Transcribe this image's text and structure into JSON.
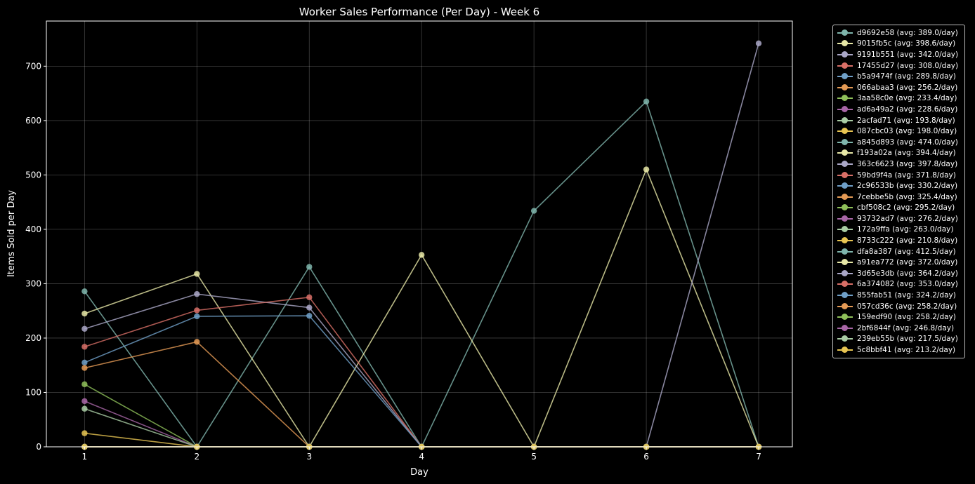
{
  "chart_data": {
    "type": "line",
    "title": "Worker Sales Performance (Per Day) - Week 6",
    "xlabel": "Day",
    "ylabel": "Items Sold per Day",
    "x": [
      1,
      2,
      3,
      4,
      5,
      6,
      7
    ],
    "xlim": [
      0.66,
      7.3
    ],
    "ylim": [
      0,
      783
    ],
    "yticks": [
      0,
      100,
      200,
      300,
      400,
      500,
      600,
      700
    ],
    "grid": true,
    "legend_position": "outside-right",
    "series": [
      {
        "name": "d9692e58 (avg: 389.0/day)",
        "color": "#7fb5ac",
        "values": [
          286,
          0,
          331,
          0,
          434,
          635,
          0
        ]
      },
      {
        "name": "9015fb5c (avg: 398.6/day)",
        "color": "#e7e7a6",
        "values": [
          245,
          318,
          0,
          353,
          0,
          510,
          0
        ]
      },
      {
        "name": "9191b551 (avg: 342.0/day)",
        "color": "#aaa7c7",
        "values": [
          217,
          281,
          256,
          0,
          0,
          0,
          742
        ]
      },
      {
        "name": "17455d27 (avg: 308.0/day)",
        "color": "#d86f67",
        "values": [
          184,
          251,
          275,
          0,
          0,
          0,
          0
        ]
      },
      {
        "name": "b5a9474f (avg: 289.8/day)",
        "color": "#6f9fc7",
        "values": [
          155,
          240,
          241,
          0,
          0,
          0,
          0
        ]
      },
      {
        "name": "066abaa3 (avg: 256.2/day)",
        "color": "#e49a55",
        "values": [
          145,
          193,
          0,
          0,
          0,
          0,
          0
        ]
      },
      {
        "name": "3aa58c0e (avg: 233.4/day)",
        "color": "#8fc05a",
        "values": [
          115,
          0,
          0,
          0,
          0,
          0,
          0
        ]
      },
      {
        "name": "ad6a49a2 (avg: 228.6/day)",
        "color": "#a866a6",
        "values": [
          84,
          0,
          0,
          0,
          0,
          0,
          0
        ]
      },
      {
        "name": "2acfad71 (avg: 193.8/day)",
        "color": "#a9cca4",
        "values": [
          70,
          0,
          0,
          0,
          0,
          0,
          0
        ]
      },
      {
        "name": "087cbc03 (avg: 198.0/day)",
        "color": "#e8c552",
        "values": [
          25,
          0,
          0,
          0,
          0,
          0,
          0
        ]
      },
      {
        "name": "a845d893 (avg: 474.0/day)",
        "color": "#7fb5ac",
        "values": [
          0,
          0,
          0,
          0,
          0,
          0,
          0
        ]
      },
      {
        "name": "f193a02a (avg: 394.4/day)",
        "color": "#e7e7a6",
        "values": [
          0,
          0,
          0,
          0,
          0,
          0,
          0
        ]
      },
      {
        "name": "363c6623 (avg: 397.8/day)",
        "color": "#aaa7c7",
        "values": [
          0,
          0,
          0,
          0,
          0,
          0,
          0
        ]
      },
      {
        "name": "59bd9f4a (avg: 371.8/day)",
        "color": "#d86f67",
        "values": [
          0,
          0,
          0,
          0,
          0,
          0,
          0
        ]
      },
      {
        "name": "2c96533b (avg: 330.2/day)",
        "color": "#6f9fc7",
        "values": [
          0,
          0,
          0,
          0,
          0,
          0,
          0
        ]
      },
      {
        "name": "7cebbe5b (avg: 325.4/day)",
        "color": "#e49a55",
        "values": [
          0,
          0,
          0,
          0,
          0,
          0,
          0
        ]
      },
      {
        "name": "cbf508c2 (avg: 295.2/day)",
        "color": "#8fc05a",
        "values": [
          0,
          0,
          0,
          0,
          0,
          0,
          0
        ]
      },
      {
        "name": "93732ad7 (avg: 276.2/day)",
        "color": "#a866a6",
        "values": [
          0,
          0,
          0,
          0,
          0,
          0,
          0
        ]
      },
      {
        "name": "172a9ffa (avg: 263.0/day)",
        "color": "#a9cca4",
        "values": [
          0,
          0,
          0,
          0,
          0,
          0,
          0
        ]
      },
      {
        "name": "8733c222 (avg: 210.8/day)",
        "color": "#e8c552",
        "values": [
          0,
          0,
          0,
          0,
          0,
          0,
          0
        ]
      },
      {
        "name": "dfa8a387 (avg: 412.5/day)",
        "color": "#7fb5ac",
        "values": [
          0,
          0,
          0,
          0,
          0,
          0,
          0
        ]
      },
      {
        "name": "a91ea772 (avg: 372.0/day)",
        "color": "#e7e7a6",
        "values": [
          0,
          0,
          0,
          0,
          0,
          0,
          0
        ]
      },
      {
        "name": "3d65e3db (avg: 364.2/day)",
        "color": "#aaa7c7",
        "values": [
          0,
          0,
          0,
          0,
          0,
          0,
          0
        ]
      },
      {
        "name": "6a374082 (avg: 353.0/day)",
        "color": "#d86f67",
        "values": [
          0,
          0,
          0,
          0,
          0,
          0,
          0
        ]
      },
      {
        "name": "855fab51 (avg: 324.2/day)",
        "color": "#6f9fc7",
        "values": [
          0,
          0,
          0,
          0,
          0,
          0,
          0
        ]
      },
      {
        "name": "057cd36c (avg: 258.2/day)",
        "color": "#e49a55",
        "values": [
          0,
          0,
          0,
          0,
          0,
          0,
          0
        ]
      },
      {
        "name": "159edf90 (avg: 258.2/day)",
        "color": "#8fc05a",
        "values": [
          0,
          0,
          0,
          0,
          0,
          0,
          0
        ]
      },
      {
        "name": "2bf6844f (avg: 246.8/day)",
        "color": "#a866a6",
        "values": [
          0,
          0,
          0,
          0,
          0,
          0,
          0
        ]
      },
      {
        "name": "239eb55b (avg: 217.5/day)",
        "color": "#a9cca4",
        "values": [
          0,
          0,
          0,
          0,
          0,
          0,
          0
        ]
      },
      {
        "name": "5c8bbf41 (avg: 213.2/day)",
        "color": "#e8c552",
        "values": [
          0,
          0,
          0,
          0,
          0,
          0,
          0
        ]
      }
    ]
  }
}
